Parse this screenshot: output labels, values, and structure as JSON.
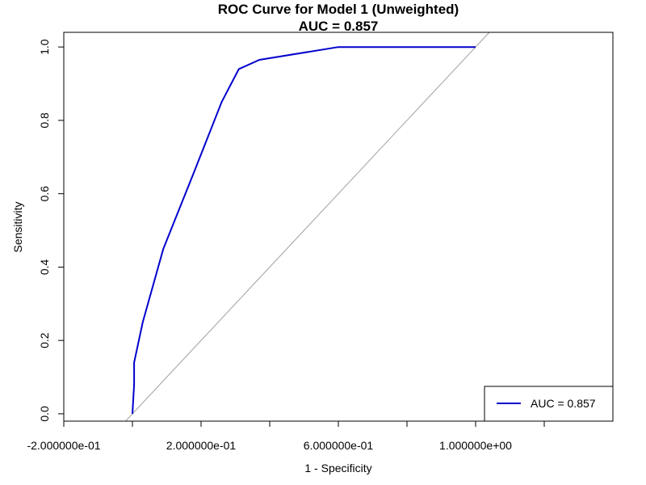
{
  "chart_data": {
    "type": "line",
    "title": "ROC Curve for Model 1 (Unweighted)",
    "subtitle": "AUC = 0.857",
    "xlabel": "1 - Specificity",
    "ylabel": "Sensitivity",
    "xlim": [
      -0.2,
      1.4
    ],
    "ylim": [
      -0.02,
      1.04
    ],
    "x_ticks": [
      -0.2,
      0.0,
      0.2,
      0.4,
      0.6,
      0.8,
      1.0,
      1.2
    ],
    "x_tick_labels": [
      "-2.000000e-01",
      "",
      "2.000000e-01",
      "",
      "6.000000e-01",
      "",
      "1.000000e+00",
      ""
    ],
    "y_ticks": [
      0.0,
      0.2,
      0.4,
      0.6,
      0.8,
      1.0
    ],
    "y_tick_labels": [
      "0.0",
      "0.2",
      "0.4",
      "0.6",
      "0.8",
      "1.0"
    ],
    "grid": false,
    "legend_position": "bottom-right",
    "series": [
      {
        "name": "AUC = 0.857",
        "color": "#0000CD",
        "x": [
          0.0,
          0.005,
          0.005,
          0.03,
          0.09,
          0.18,
          0.26,
          0.31,
          0.37,
          0.6,
          1.0
        ],
        "y": [
          0.0,
          0.08,
          0.14,
          0.25,
          0.45,
          0.66,
          0.85,
          0.94,
          0.965,
          1.0,
          1.0
        ]
      }
    ],
    "reference_line": {
      "color": "#A0A0A0",
      "x": [
        -0.2,
        1.4
      ],
      "y": [
        -0.2,
        1.4
      ]
    }
  }
}
